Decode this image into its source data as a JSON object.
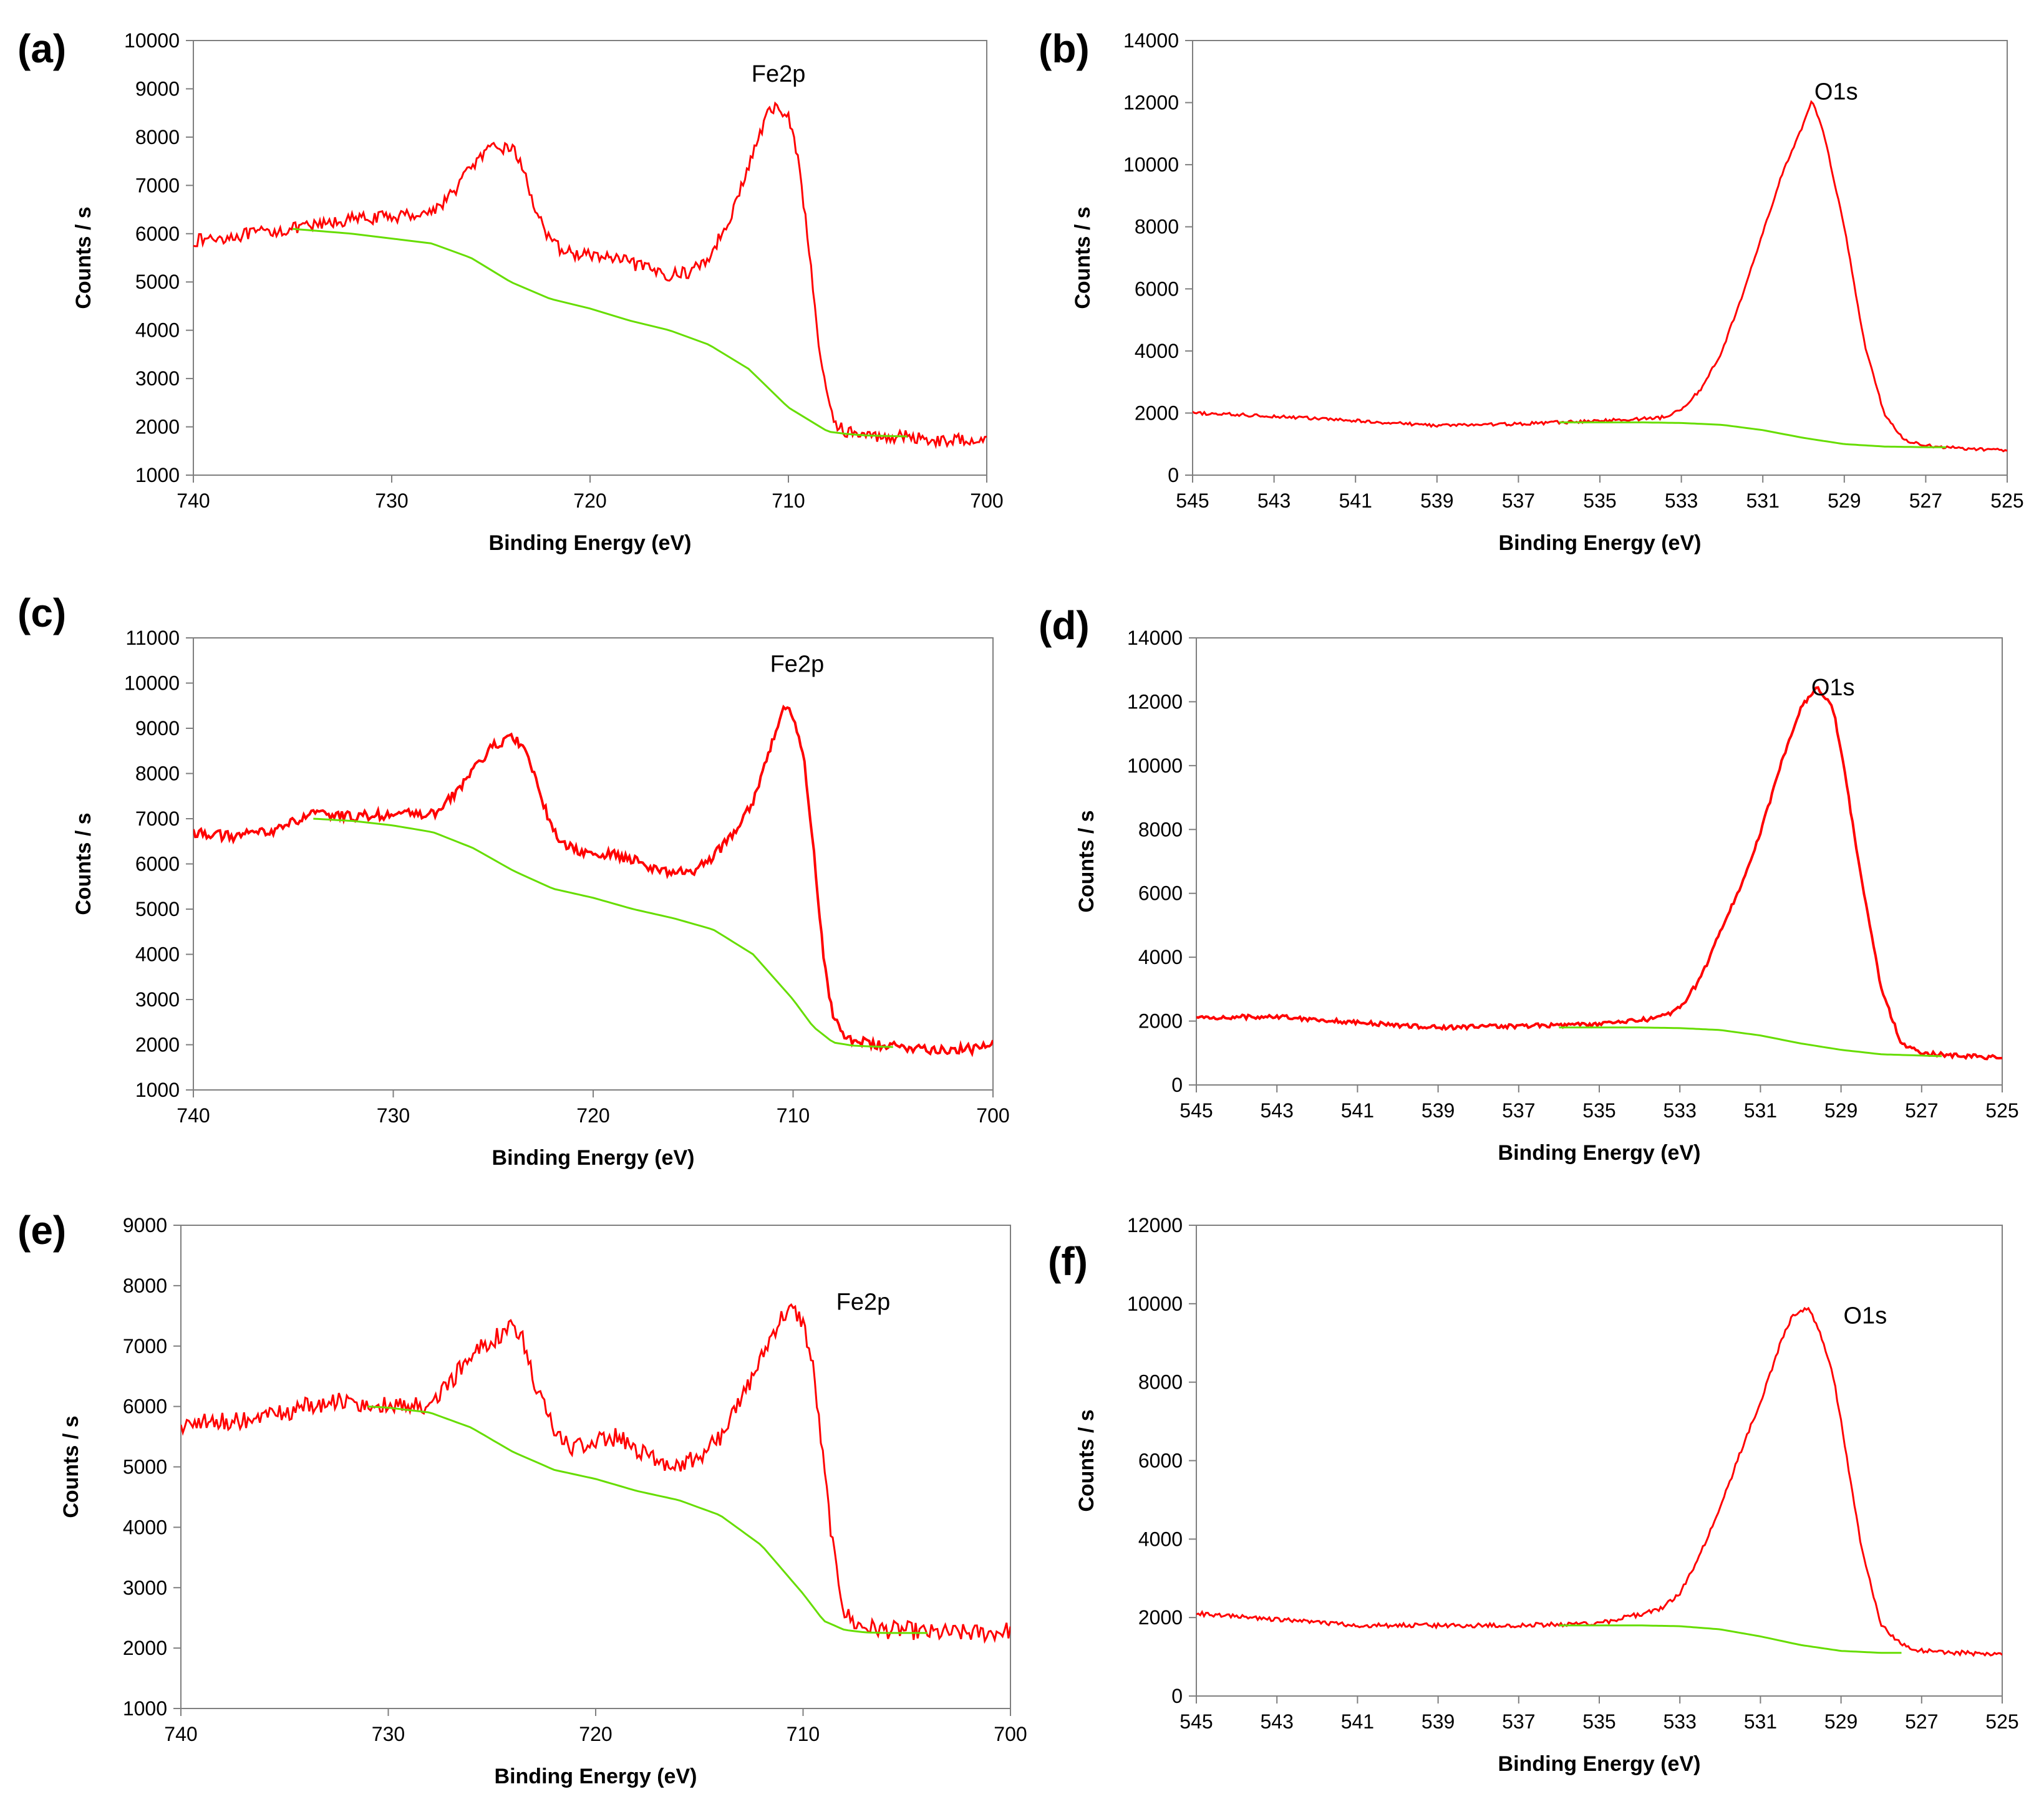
{
  "colors": {
    "measured": "#ff0000",
    "background": "#66dd00",
    "frame": "#7f7f7f"
  },
  "chart_data": [
    {
      "panel": "(a)",
      "type": "line",
      "xlabel": "Binding Energy (eV)",
      "ylabel": "Counts / s",
      "xlim": [
        740,
        700
      ],
      "ylim": [
        1000,
        10000
      ],
      "xticks": [
        740,
        730,
        720,
        710,
        700
      ],
      "yticks": [
        1000,
        2000,
        3000,
        4000,
        5000,
        6000,
        7000,
        8000,
        9000,
        10000
      ],
      "annotations": [
        {
          "text": "Fe2p",
          "x": 710.5,
          "y": 9150
        }
      ],
      "measured": {
        "x": [
          740,
          738,
          736,
          734,
          732,
          730,
          728,
          727,
          726,
          725,
          724,
          723.5,
          723,
          722,
          721,
          720,
          719,
          718,
          717,
          716,
          715,
          714,
          713.5,
          713,
          712.5,
          712,
          711.5,
          711,
          710.5,
          710,
          709.5,
          709,
          708.5,
          708,
          707.5,
          707,
          706,
          705,
          704,
          703,
          702,
          701,
          700
        ],
        "y": [
          5850,
          5950,
          6050,
          6150,
          6300,
          6350,
          6450,
          6800,
          7400,
          7750,
          7800,
          7500,
          6800,
          5800,
          5600,
          5550,
          5500,
          5400,
          5250,
          5150,
          5200,
          5500,
          5900,
          6300,
          6800,
          7400,
          8000,
          8500,
          8650,
          8400,
          7600,
          5800,
          3800,
          2500,
          2000,
          1900,
          1800,
          1800,
          1800,
          1750,
          1700,
          1750,
          1800
        ]
      },
      "noise": 130,
      "background": {
        "x": [
          735,
          732,
          730,
          728,
          726,
          724,
          722,
          720,
          718,
          716,
          714,
          712,
          710,
          708,
          707,
          706,
          705,
          704
        ],
        "y": [
          6100,
          6000,
          5900,
          5800,
          5500,
          5000,
          4650,
          4450,
          4200,
          4000,
          3700,
          3200,
          2400,
          1900,
          1850,
          1820,
          1810,
          1800
        ]
      }
    },
    {
      "panel": "(b)",
      "type": "line",
      "xlabel": "Binding Energy (eV)",
      "ylabel": "Counts / s",
      "xlim": [
        545,
        525
      ],
      "ylim": [
        0,
        14000
      ],
      "xticks": [
        545,
        543,
        541,
        539,
        537,
        535,
        533,
        531,
        529,
        527,
        525
      ],
      "yticks": [
        0,
        2000,
        4000,
        6000,
        8000,
        10000,
        12000,
        14000
      ],
      "annotations": [
        {
          "text": "O1s",
          "x": 529.2,
          "y": 12100
        }
      ],
      "measured": {
        "x": [
          545,
          543,
          541,
          539,
          537,
          535,
          533.5,
          533,
          532.5,
          532,
          531.5,
          531,
          530.5,
          530,
          529.8,
          529.5,
          529,
          528.5,
          528,
          527.5,
          527,
          526,
          525
        ],
        "y": [
          2000,
          1900,
          1750,
          1600,
          1650,
          1750,
          1850,
          2100,
          2800,
          4000,
          5800,
          7800,
          9800,
          11300,
          12100,
          11000,
          8000,
          4200,
          1900,
          1100,
          950,
          850,
          800
        ]
      },
      "noise": 50,
      "background": {
        "x": [
          536,
          535,
          534,
          533,
          532,
          531,
          530,
          529,
          528,
          527,
          526.5
        ],
        "y": [
          1700,
          1700,
          1700,
          1680,
          1620,
          1450,
          1200,
          1000,
          920,
          900,
          900
        ]
      }
    },
    {
      "panel": "(c)",
      "type": "line",
      "xlabel": "Binding Energy (eV)",
      "ylabel": "Counts / s",
      "xlim": [
        740,
        700
      ],
      "ylim": [
        1000,
        11000
      ],
      "xticks": [
        740,
        730,
        720,
        710,
        700
      ],
      "yticks": [
        1000,
        2000,
        3000,
        4000,
        5000,
        6000,
        7000,
        8000,
        9000,
        10000,
        11000
      ],
      "annotations": [
        {
          "text": "Fe2p",
          "x": 709.8,
          "y": 10250
        }
      ],
      "measured": {
        "x": [
          740,
          738,
          736,
          734,
          732,
          730,
          728,
          727,
          726,
          725,
          724,
          723.5,
          723,
          722,
          721,
          720,
          719,
          718,
          717,
          716,
          715,
          714,
          713,
          712,
          711.5,
          711,
          710.5,
          710,
          709.5,
          709,
          708.5,
          708,
          707.5,
          707,
          706,
          705,
          704,
          703,
          702,
          701,
          700
        ],
        "y": [
          6700,
          6600,
          6750,
          7100,
          7050,
          7100,
          7100,
          7500,
          8100,
          8600,
          8800,
          8600,
          8000,
          6700,
          6300,
          6200,
          6200,
          6100,
          5900,
          5800,
          5850,
          6150,
          6700,
          7400,
          8100,
          8800,
          9400,
          9300,
          8500,
          6500,
          4000,
          2600,
          2200,
          2100,
          2000,
          1950,
          1950,
          1900,
          1900,
          1900,
          2000
        ]
      },
      "noise": 110,
      "background": {
        "x": [
          734,
          732,
          730,
          728,
          726,
          724,
          722,
          720,
          718,
          716,
          714,
          712,
          710,
          709,
          708,
          707,
          706,
          705
        ],
        "y": [
          7000,
          6950,
          6850,
          6700,
          6350,
          5850,
          5450,
          5250,
          5000,
          4800,
          4550,
          4000,
          3000,
          2400,
          2050,
          1980,
          1960,
          1950
        ]
      }
    },
    {
      "panel": "(d)",
      "type": "line",
      "xlabel": "Binding Energy (eV)",
      "ylabel": "Counts / s",
      "xlim": [
        545,
        525
      ],
      "ylim": [
        0,
        14000
      ],
      "xticks": [
        545,
        543,
        541,
        539,
        537,
        535,
        533,
        531,
        529,
        527,
        525
      ],
      "yticks": [
        0,
        2000,
        4000,
        6000,
        8000,
        10000,
        12000,
        14000
      ],
      "annotations": [
        {
          "text": "O1s",
          "x": 529.2,
          "y": 12200
        }
      ],
      "measured": {
        "x": [
          545,
          543,
          541,
          539,
          537,
          535,
          533.5,
          533,
          532.5,
          532,
          531.5,
          531,
          530.5,
          530,
          529.6,
          529.2,
          529,
          528.5,
          528,
          527.5,
          527,
          526,
          525
        ],
        "y": [
          2100,
          2150,
          1950,
          1800,
          1850,
          1900,
          2100,
          2400,
          3300,
          4800,
          6200,
          7900,
          10000,
          11800,
          12500,
          11800,
          10500,
          6500,
          3000,
          1300,
          1000,
          900,
          850
        ]
      },
      "noise": 70,
      "background": {
        "x": [
          536,
          535,
          534,
          533,
          532,
          531,
          530,
          529,
          528,
          527,
          526.5
        ],
        "y": [
          1800,
          1800,
          1800,
          1780,
          1720,
          1550,
          1300,
          1100,
          960,
          920,
          900
        ]
      }
    },
    {
      "panel": "(e)",
      "type": "line",
      "xlabel": "Binding Energy (eV)",
      "ylabel": "Counts / s",
      "xlim": [
        740,
        700
      ],
      "ylim": [
        1000,
        9000
      ],
      "xticks": [
        740,
        730,
        720,
        710,
        700
      ],
      "yticks": [
        1000,
        2000,
        3000,
        4000,
        5000,
        6000,
        7000,
        8000,
        9000
      ],
      "annotations": [
        {
          "text": "Fe2p",
          "x": 707.1,
          "y": 7600
        }
      ],
      "measured": {
        "x": [
          740,
          738,
          736,
          734,
          732,
          730,
          728,
          727,
          726,
          725,
          724,
          723.5,
          723,
          722,
          721,
          720,
          719,
          718,
          717,
          716,
          715,
          714,
          713,
          712,
          711.5,
          711,
          710.5,
          710,
          709.5,
          709,
          708.5,
          708,
          707.5,
          707,
          706,
          705,
          704,
          703,
          702,
          701,
          700
        ],
        "y": [
          5700,
          5750,
          5800,
          6000,
          6100,
          6000,
          6000,
          6400,
          6900,
          7100,
          7300,
          7100,
          6400,
          5600,
          5300,
          5400,
          5500,
          5300,
          5100,
          5050,
          5150,
          5500,
          6100,
          6800,
          7200,
          7500,
          7600,
          7400,
          6600,
          5000,
          3500,
          2600,
          2400,
          2350,
          2300,
          2300,
          2250,
          2250,
          2250,
          2250,
          2300
        ]
      },
      "noise": 150,
      "background": {
        "x": [
          731,
          730,
          728,
          726,
          724,
          722,
          720,
          718,
          716,
          714,
          712,
          710,
          709,
          708,
          707,
          706,
          705,
          704
        ],
        "y": [
          6000,
          5980,
          5900,
          5650,
          5250,
          4950,
          4800,
          4600,
          4450,
          4200,
          3700,
          2900,
          2450,
          2300,
          2260,
          2250,
          2250,
          2250
        ]
      }
    },
    {
      "panel": "(f)",
      "type": "line",
      "xlabel": "Binding Energy (eV)",
      "ylabel": "Counts / s",
      "xlim": [
        545,
        525
      ],
      "ylim": [
        0,
        12000
      ],
      "xticks": [
        545,
        543,
        541,
        539,
        537,
        535,
        533,
        531,
        529,
        527,
        525
      ],
      "yticks": [
        0,
        2000,
        4000,
        6000,
        8000,
        10000,
        12000
      ],
      "annotations": [
        {
          "text": "O1s",
          "x": 528.4,
          "y": 9500
        }
      ],
      "measured": {
        "x": [
          545,
          543,
          541,
          539,
          537,
          535,
          533.5,
          533,
          532.5,
          532,
          531.5,
          531,
          530.5,
          530.2,
          529.8,
          529.5,
          529.2,
          529,
          528.5,
          528,
          527.5,
          527,
          526,
          525
        ],
        "y": [
          2100,
          1950,
          1800,
          1800,
          1800,
          1850,
          2200,
          2600,
          3600,
          4800,
          6200,
          7500,
          9000,
          9700,
          9900,
          9200,
          8200,
          7000,
          3800,
          1800,
          1300,
          1150,
          1100,
          1050
        ]
      },
      "noise": 55,
      "background": {
        "x": [
          536,
          535,
          534,
          533,
          532,
          531,
          530,
          529,
          528,
          527.5
        ],
        "y": [
          1800,
          1800,
          1800,
          1780,
          1700,
          1520,
          1300,
          1150,
          1100,
          1100
        ]
      }
    }
  ]
}
